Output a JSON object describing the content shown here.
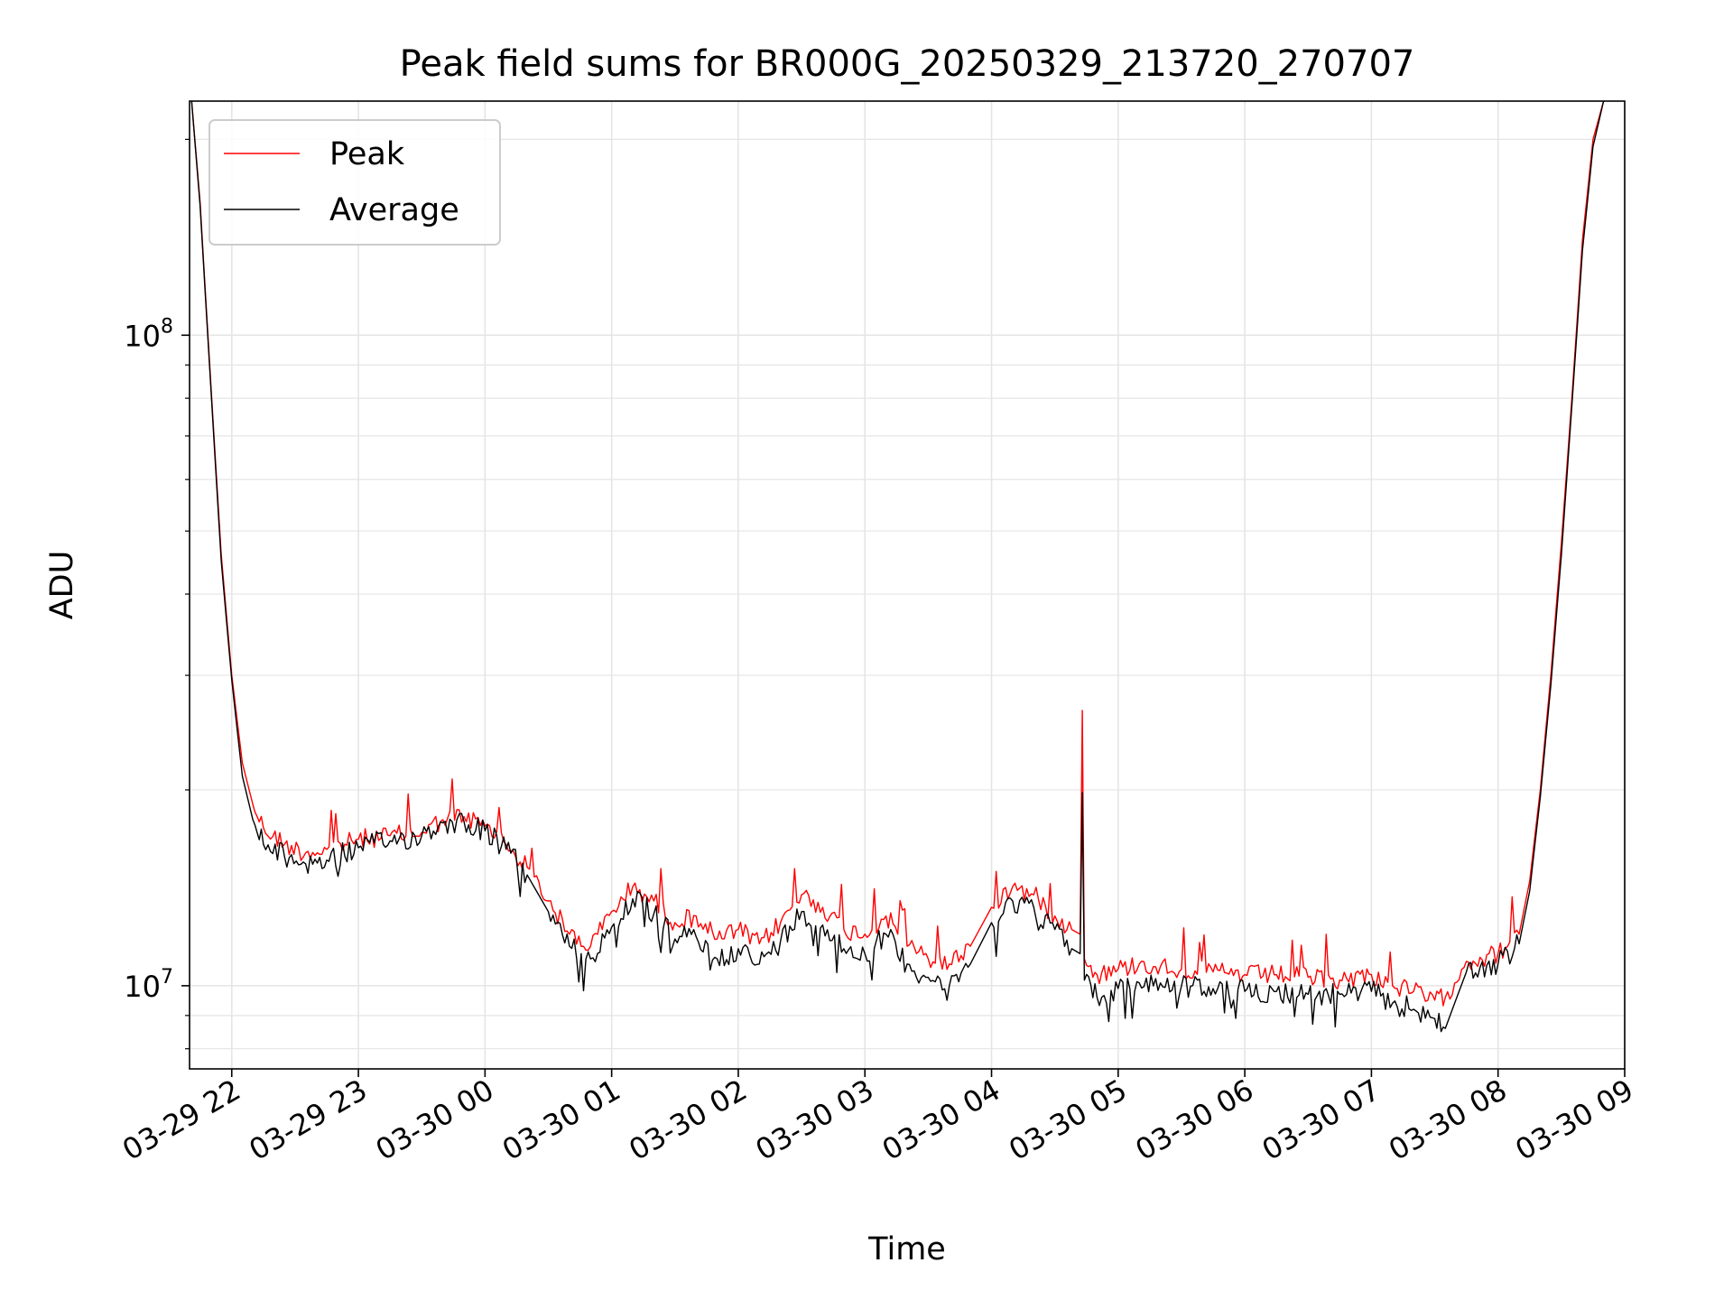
{
  "chart_data": {
    "type": "line",
    "title": "Peak field sums for BR000G_20250329_213720_270707",
    "xlabel": "Time",
    "ylabel": "ADU",
    "yscale": "log",
    "ylim": [
      7450000,
      229000000
    ],
    "xlim": [
      "2025-03-29 21:40",
      "2025-03-30 09:00"
    ],
    "grid": true,
    "legend_position": "upper-left",
    "x_ticks": [
      {
        "at": "2025-03-29 22:00",
        "label": "03-29 22"
      },
      {
        "at": "2025-03-29 23:00",
        "label": "03-29 23"
      },
      {
        "at": "2025-03-30 00:00",
        "label": "03-30 00"
      },
      {
        "at": "2025-03-30 01:00",
        "label": "03-30 01"
      },
      {
        "at": "2025-03-30 02:00",
        "label": "03-30 02"
      },
      {
        "at": "2025-03-30 03:00",
        "label": "03-30 03"
      },
      {
        "at": "2025-03-30 04:00",
        "label": "03-30 04"
      },
      {
        "at": "2025-03-30 05:00",
        "label": "03-30 05"
      },
      {
        "at": "2025-03-30 06:00",
        "label": "03-30 06"
      },
      {
        "at": "2025-03-30 07:00",
        "label": "03-30 07"
      },
      {
        "at": "2025-03-30 08:00",
        "label": "03-30 08"
      },
      {
        "at": "2025-03-30 09:00",
        "label": "03-30 09"
      }
    ],
    "y_ticks": [
      {
        "at": 10000000,
        "base": "10",
        "exp": "7"
      },
      {
        "at": 100000000,
        "base": "10",
        "exp": "8"
      }
    ],
    "series": [
      {
        "name": "Peak",
        "color": "#ff0000",
        "x": [
          "2025-03-29 21:41",
          "2025-03-29 21:45",
          "2025-03-29 21:50",
          "2025-03-29 21:55",
          "2025-03-29 22:00",
          "2025-03-29 22:05",
          "2025-03-29 22:10",
          "2025-03-29 22:15",
          "2025-03-29 22:25",
          "2025-03-29 22:35",
          "2025-03-29 22:45",
          "2025-03-29 23:00",
          "2025-03-29 23:15",
          "2025-03-29 23:30",
          "2025-03-29 23:40",
          "2025-03-29 23:50",
          "2025-03-30 00:00",
          "2025-03-30 00:10",
          "2025-03-30 00:20",
          "2025-03-30 00:30",
          "2025-03-30 00:40",
          "2025-03-30 00:50",
          "2025-03-30 01:00",
          "2025-03-30 01:10",
          "2025-03-30 01:20",
          "2025-03-30 01:30",
          "2025-03-30 01:40",
          "2025-03-30 01:50",
          "2025-03-30 02:00",
          "2025-03-30 02:10",
          "2025-03-30 02:20",
          "2025-03-30 02:30",
          "2025-03-30 02:40",
          "2025-03-30 02:50",
          "2025-03-30 03:00",
          "2025-03-30 03:10",
          "2025-03-30 03:20",
          "2025-03-30 03:30",
          "2025-03-30 03:40",
          "2025-03-30 03:50",
          "2025-03-30 04:00",
          "2025-03-30 04:10",
          "2025-03-30 04:20",
          "2025-03-30 04:30",
          "2025-03-30 04:38",
          "2025-03-30 04:42",
          "2025-03-30 04:43",
          "2025-03-30 04:44",
          "2025-03-30 04:50",
          "2025-03-30 05:00",
          "2025-03-30 05:10",
          "2025-03-30 05:20",
          "2025-03-30 05:30",
          "2025-03-30 05:45",
          "2025-03-30 06:00",
          "2025-03-30 06:15",
          "2025-03-30 06:30",
          "2025-03-30 06:45",
          "2025-03-30 07:00",
          "2025-03-30 07:10",
          "2025-03-30 07:20",
          "2025-03-30 07:30",
          "2025-03-30 07:35",
          "2025-03-30 07:45",
          "2025-03-30 08:00",
          "2025-03-30 08:10",
          "2025-03-30 08:15",
          "2025-03-30 08:20",
          "2025-03-30 08:25",
          "2025-03-30 08:30",
          "2025-03-30 08:35",
          "2025-03-30 08:40",
          "2025-03-30 08:45",
          "2025-03-30 08:50"
        ],
        "y": [
          229000000,
          160000000,
          85000000,
          46000000,
          30000000,
          22000000,
          19000000,
          17500000,
          16500000,
          16000000,
          16200000,
          16800000,
          17000000,
          17200000,
          18000000,
          18200000,
          17600000,
          16500000,
          15200000,
          13500000,
          12000000,
          11500000,
          13000000,
          14200000,
          13500000,
          12500000,
          12800000,
          11800000,
          12200000,
          11600000,
          12500000,
          13800000,
          13200000,
          12200000,
          12000000,
          12800000,
          11500000,
          11000000,
          10800000,
          11500000,
          13200000,
          14200000,
          13800000,
          12800000,
          12200000,
          12000000,
          26500000,
          11000000,
          10400000,
          10600000,
          10800000,
          10700000,
          10600000,
          10500000,
          10400000,
          10400000,
          10300000,
          10200000,
          10400000,
          10000000,
          9800000,
          9500000,
          9600000,
          10900000,
          11200000,
          12000000,
          14500000,
          20000000,
          30000000,
          48000000,
          80000000,
          140000000,
          200000000,
          229000000
        ]
      },
      {
        "name": "Average",
        "color": "#000000",
        "x": [
          "2025-03-29 21:41",
          "2025-03-29 21:45",
          "2025-03-29 21:50",
          "2025-03-29 21:55",
          "2025-03-29 22:00",
          "2025-03-29 22:05",
          "2025-03-29 22:10",
          "2025-03-29 22:15",
          "2025-03-29 22:25",
          "2025-03-29 22:35",
          "2025-03-29 22:45",
          "2025-03-29 23:00",
          "2025-03-29 23:15",
          "2025-03-29 23:30",
          "2025-03-29 23:40",
          "2025-03-29 23:50",
          "2025-03-30 00:00",
          "2025-03-30 00:10",
          "2025-03-30 00:20",
          "2025-03-30 00:30",
          "2025-03-30 00:40",
          "2025-03-30 00:50",
          "2025-03-30 01:00",
          "2025-03-30 01:10",
          "2025-03-30 01:20",
          "2025-03-30 01:30",
          "2025-03-30 01:40",
          "2025-03-30 01:50",
          "2025-03-30 02:00",
          "2025-03-30 02:10",
          "2025-03-30 02:20",
          "2025-03-30 02:30",
          "2025-03-30 02:40",
          "2025-03-30 02:50",
          "2025-03-30 03:00",
          "2025-03-30 03:10",
          "2025-03-30 03:20",
          "2025-03-30 03:30",
          "2025-03-30 03:40",
          "2025-03-30 03:50",
          "2025-03-30 04:00",
          "2025-03-30 04:10",
          "2025-03-30 04:20",
          "2025-03-30 04:30",
          "2025-03-30 04:38",
          "2025-03-30 04:42",
          "2025-03-30 04:43",
          "2025-03-30 04:44",
          "2025-03-30 04:50",
          "2025-03-30 05:00",
          "2025-03-30 05:10",
          "2025-03-30 05:20",
          "2025-03-30 05:30",
          "2025-03-30 05:45",
          "2025-03-30 06:00",
          "2025-03-30 06:15",
          "2025-03-30 06:30",
          "2025-03-30 06:45",
          "2025-03-30 07:00",
          "2025-03-30 07:10",
          "2025-03-30 07:20",
          "2025-03-30 07:30",
          "2025-03-30 07:35",
          "2025-03-30 07:45",
          "2025-03-30 08:00",
          "2025-03-30 08:10",
          "2025-03-30 08:15",
          "2025-03-30 08:20",
          "2025-03-30 08:25",
          "2025-03-30 08:30",
          "2025-03-30 08:35",
          "2025-03-30 08:40",
          "2025-03-30 08:45",
          "2025-03-30 08:50"
        ],
        "y": [
          229000000,
          158000000,
          84000000,
          45000000,
          29500000,
          21000000,
          18000000,
          16500000,
          15800000,
          15400000,
          15600000,
          16300000,
          16700000,
          17000000,
          17800000,
          17900000,
          17300000,
          16200000,
          14800000,
          13000000,
          11500000,
          11000000,
          12300000,
          13600000,
          12900000,
          11800000,
          11900000,
          11000000,
          11400000,
          10800000,
          11700000,
          13000000,
          12400000,
          11400000,
          11200000,
          12000000,
          10800000,
          10300000,
          10000000,
          10800000,
          12500000,
          13500000,
          13200000,
          12200000,
          11400000,
          11200000,
          19800000,
          10200000,
          9600000,
          9900000,
          10100000,
          10100000,
          10000000,
          9900000,
          9800000,
          9800000,
          9700000,
          9700000,
          9800000,
          9400000,
          9200000,
          8900000,
          8600000,
          10500000,
          10800000,
          11600000,
          14000000,
          19500000,
          29000000,
          46000000,
          78000000,
          135000000,
          195000000,
          229000000
        ]
      }
    ]
  }
}
